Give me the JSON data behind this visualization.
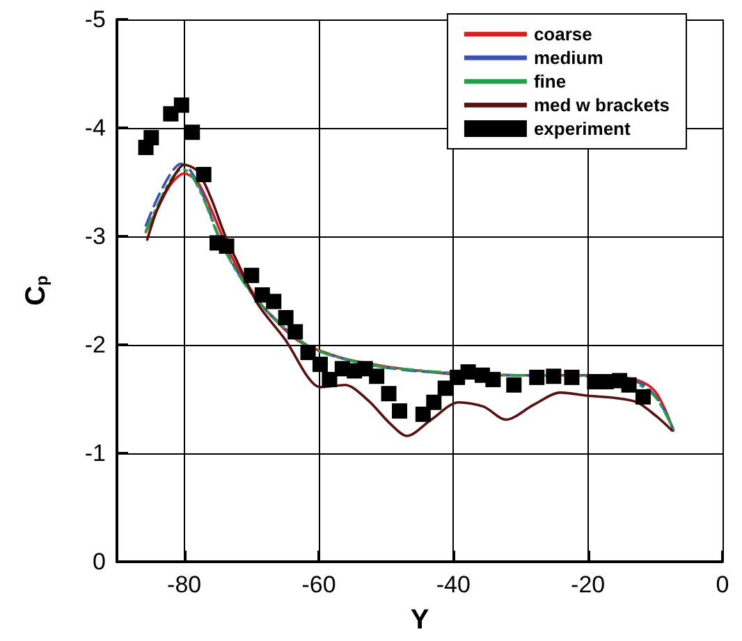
{
  "chart_data": {
    "type": "line",
    "xlabel": "Y",
    "ylabel": "C$_{p}$",
    "xlim": [
      -90,
      0
    ],
    "xticks": [
      -80,
      -60,
      -40,
      -20,
      0
    ],
    "ylim": [
      0,
      -5
    ],
    "yticks": [
      0,
      -1,
      -2,
      -3,
      -4,
      -5
    ],
    "grid": true,
    "legend": "top right",
    "series": [
      {
        "name": "coarse",
        "color": "#e31a1c",
        "line_style": "solid",
        "marker": "none",
        "x": [
          -85.7,
          -84,
          -82,
          -80,
          -78,
          -76,
          -74,
          -72,
          -70,
          -68,
          -66,
          -64,
          -62,
          -60,
          -56,
          -50,
          -45,
          -40,
          -35,
          -30,
          -25,
          -20,
          -15,
          -12,
          -10,
          -8.5,
          -7.3
        ],
        "values": [
          -3.04,
          -3.25,
          -3.48,
          -3.58,
          -3.5,
          -3.25,
          -2.95,
          -2.7,
          -2.5,
          -2.33,
          -2.2,
          -2.08,
          -2.0,
          -1.95,
          -1.87,
          -1.8,
          -1.76,
          -1.73,
          -1.72,
          -1.72,
          -1.72,
          -1.72,
          -1.7,
          -1.66,
          -1.57,
          -1.4,
          -1.21
        ]
      },
      {
        "name": "medium",
        "color": "#3b4fb8",
        "line_style": "dashed",
        "marker": "none",
        "x": [
          -85.7,
          -84,
          -82,
          -80.5,
          -79,
          -77,
          -75,
          -73,
          -71,
          -69,
          -67,
          -65,
          -63,
          -61,
          -58,
          -52,
          -46,
          -40,
          -35,
          -30,
          -25,
          -20,
          -15,
          -12,
          -10,
          -8.5,
          -7.3
        ],
        "values": [
          -3.1,
          -3.35,
          -3.58,
          -3.67,
          -3.6,
          -3.35,
          -3.02,
          -2.77,
          -2.57,
          -2.4,
          -2.27,
          -2.15,
          -2.05,
          -1.97,
          -1.9,
          -1.81,
          -1.76,
          -1.74,
          -1.73,
          -1.72,
          -1.72,
          -1.72,
          -1.69,
          -1.64,
          -1.53,
          -1.38,
          -1.22
        ]
      },
      {
        "name": "fine",
        "color": "#1fa34a",
        "line_style": "dashdot",
        "marker": "none",
        "x": [
          -85.7,
          -84,
          -82,
          -80.3,
          -79,
          -77,
          -75,
          -73,
          -71,
          -69,
          -67,
          -65,
          -63,
          -61,
          -58,
          -52,
          -46,
          -40,
          -35,
          -30,
          -25,
          -20,
          -15,
          -12,
          -10,
          -8.5,
          -7.3
        ],
        "values": [
          -3.05,
          -3.28,
          -3.52,
          -3.62,
          -3.57,
          -3.33,
          -3.01,
          -2.76,
          -2.56,
          -2.4,
          -2.27,
          -2.15,
          -2.05,
          -1.97,
          -1.9,
          -1.81,
          -1.77,
          -1.74,
          -1.73,
          -1.72,
          -1.72,
          -1.71,
          -1.68,
          -1.62,
          -1.52,
          -1.37,
          -1.22
        ]
      },
      {
        "name": "med w brackets",
        "color": "#5a1010",
        "line_style": "solid",
        "marker": "none",
        "x": [
          -85.5,
          -84,
          -82,
          -80,
          -78,
          -76,
          -74,
          -72,
          -69,
          -64.9,
          -61.6,
          -59.8,
          -56.1,
          -52.7,
          -49.5,
          -46.9,
          -43.3,
          -39.2,
          -35.5,
          -32.2,
          -28,
          -24.1,
          -20,
          -15.9,
          -12.7,
          -9.8,
          -7.5
        ],
        "values": [
          -2.97,
          -3.25,
          -3.5,
          -3.66,
          -3.6,
          -3.35,
          -3.02,
          -2.75,
          -2.37,
          -2.04,
          -1.7,
          -1.61,
          -1.63,
          -1.49,
          -1.28,
          -1.16,
          -1.31,
          -1.47,
          -1.43,
          -1.31,
          -1.45,
          -1.56,
          -1.53,
          -1.51,
          -1.47,
          -1.34,
          -1.21
        ]
      },
      {
        "name": "experiment",
        "type": "scatter",
        "color": "#000000",
        "marker": "square",
        "x": [
          -85.7,
          -84.9,
          -82.0,
          -80.4,
          -78.8,
          -77.1,
          -75.1,
          -73.7,
          -70.0,
          -68.4,
          -66.7,
          -64.9,
          -63.5,
          -61.6,
          -59.8,
          -58.4,
          -56.5,
          -54.7,
          -53.1,
          -51.4,
          -49.6,
          -48.0,
          -44.5,
          -42.9,
          -41.2,
          -39.4,
          -37.8,
          -35.7,
          -34.1,
          -31.0,
          -27.6,
          -25.1,
          -22.4,
          -19.0,
          -17.3,
          -15.3,
          -13.9,
          -11.8
        ],
        "values": [
          -3.82,
          -3.91,
          -4.13,
          -4.21,
          -3.96,
          -3.57,
          -2.94,
          -2.91,
          -2.64,
          -2.46,
          -2.4,
          -2.25,
          -2.12,
          -1.93,
          -1.82,
          -1.68,
          -1.78,
          -1.76,
          -1.78,
          -1.71,
          -1.55,
          -1.39,
          -1.36,
          -1.47,
          -1.6,
          -1.7,
          -1.75,
          -1.72,
          -1.68,
          -1.63,
          -1.7,
          -1.71,
          -1.7,
          -1.66,
          -1.66,
          -1.67,
          -1.63,
          -1.52
        ]
      }
    ]
  }
}
